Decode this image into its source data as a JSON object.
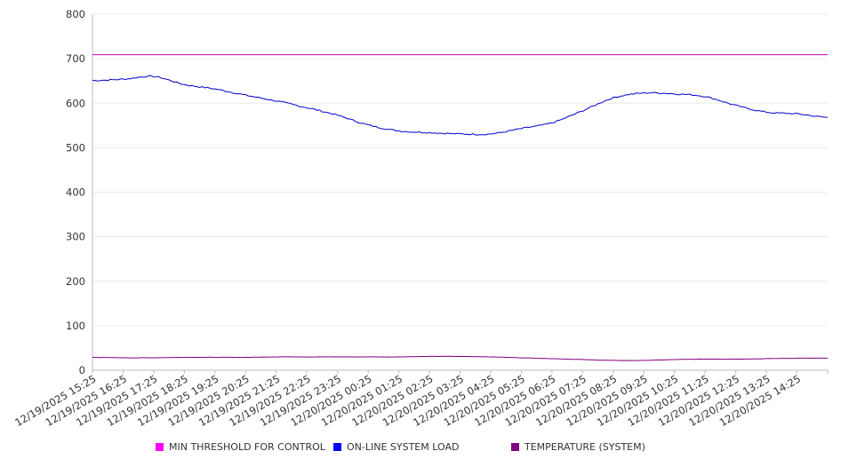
{
  "chart_data": {
    "type": "line",
    "title": "",
    "xlabel": "",
    "ylabel": "",
    "ylim": [
      0,
      800
    ],
    "yticks": [
      0,
      100,
      200,
      300,
      400,
      500,
      600,
      700,
      800
    ],
    "x_tick_labels": [
      "12/19/2025 15:25",
      "12/19/2025 16:25",
      "12/19/2025 17:25",
      "12/19/2025 18:25",
      "12/19/2025 19:25",
      "12/19/2025 20:25",
      "12/19/2025 21:25",
      "12/19/2025 22:25",
      "12/19/2025 23:25",
      "12/20/2025 00:25",
      "12/20/2025 01:25",
      "12/20/2025 02:25",
      "12/20/2025 03:25",
      "12/20/2025 04:25",
      "12/20/2025 05:25",
      "12/20/2025 06:25",
      "12/20/2025 07:25",
      "12/20/2025 08:25",
      "12/20/2025 09:25",
      "12/20/2025 10:25",
      "12/20/2025 11:25",
      "12/20/2025 12:25",
      "12/20/2025 13:25",
      "12/20/2025 14:25"
    ],
    "x": [
      "12/19/2025 15:25",
      "12/19/2025 16:25",
      "12/19/2025 17:25",
      "12/19/2025 18:25",
      "12/19/2025 19:25",
      "12/19/2025 20:25",
      "12/19/2025 21:25",
      "12/19/2025 22:25",
      "12/19/2025 23:25",
      "12/20/2025 00:25",
      "12/20/2025 01:25",
      "12/20/2025 02:25",
      "12/20/2025 03:25",
      "12/20/2025 04:25",
      "12/20/2025 05:25",
      "12/20/2025 06:25",
      "12/20/2025 07:25",
      "12/20/2025 08:25",
      "12/20/2025 09:25",
      "12/20/2025 10:25",
      "12/20/2025 11:25",
      "12/20/2025 12:25",
      "12/20/2025 13:25",
      "12/20/2025 14:25",
      "12/20/2025 15:25"
    ],
    "series": [
      {
        "name": "MIN THRESHOLD FOR CONTROL",
        "color": "#c000c0",
        "legend_color": "#ff00ff",
        "values": [
          709,
          709,
          709,
          709,
          709,
          709,
          709,
          709,
          709,
          709,
          709,
          709,
          709,
          709,
          709,
          709,
          709,
          709,
          709,
          709,
          709,
          709,
          709,
          709,
          709
        ]
      },
      {
        "name": "ON-LINE SYSTEM LOAD",
        "color": "#0000cc",
        "legend_color": "#0000ff",
        "values": [
          651,
          654,
          660,
          642,
          632,
          618,
          605,
          590,
          573,
          551,
          538,
          534,
          531,
          531,
          543,
          556,
          583,
          612,
          623,
          621,
          615,
          595,
          580,
          576,
          568
        ]
      },
      {
        "name": "TEMPERATURE (SYSTEM)",
        "color": "#800080",
        "legend_color": "#800080",
        "values": [
          29,
          28,
          28,
          29,
          29,
          29,
          30,
          30,
          30,
          30,
          30,
          31,
          31,
          30,
          28,
          26,
          24,
          22,
          22,
          24,
          25,
          25,
          26,
          27,
          27
        ]
      }
    ],
    "grid": true,
    "legend_position": "bottom"
  }
}
